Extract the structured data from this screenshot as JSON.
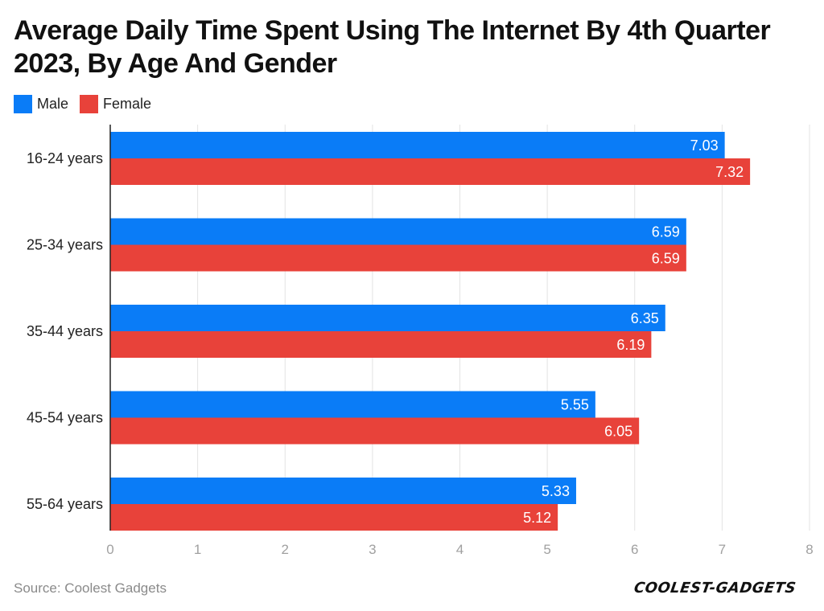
{
  "title": "Average Daily Time Spent Using The Internet By 4th Quarter 2023, By Age And Gender",
  "source": "Source: Coolest Gadgets",
  "brand": "COOLEST-GADGETS",
  "colors": {
    "male": "#0a7cf7",
    "female": "#e8423a",
    "grid": "#e3e3e3",
    "axis": "#222222",
    "tick_label": "#a0a0a0"
  },
  "legend": [
    {
      "name": "Male",
      "color": "#0a7cf7"
    },
    {
      "name": "Female",
      "color": "#e8423a"
    }
  ],
  "chart_data": {
    "type": "bar",
    "orientation": "horizontal",
    "title": "Average Daily Time Spent Using The Internet By 4th Quarter 2023, By Age And Gender",
    "categories": [
      "16-24 years",
      "25-34 years",
      "35-44 years",
      "45-54 years",
      "55-64 years"
    ],
    "series": [
      {
        "name": "Male",
        "values": [
          7.03,
          6.59,
          6.35,
          5.55,
          5.33
        ]
      },
      {
        "name": "Female",
        "values": [
          7.32,
          6.59,
          6.19,
          6.05,
          5.12
        ]
      }
    ],
    "xlim": [
      0,
      8
    ],
    "x_ticks": [
      0,
      1,
      2,
      3,
      4,
      5,
      6,
      7,
      8
    ],
    "xlabel": "",
    "ylabel": "",
    "grid": true,
    "legend_position": "top-left",
    "data_labels": true
  }
}
